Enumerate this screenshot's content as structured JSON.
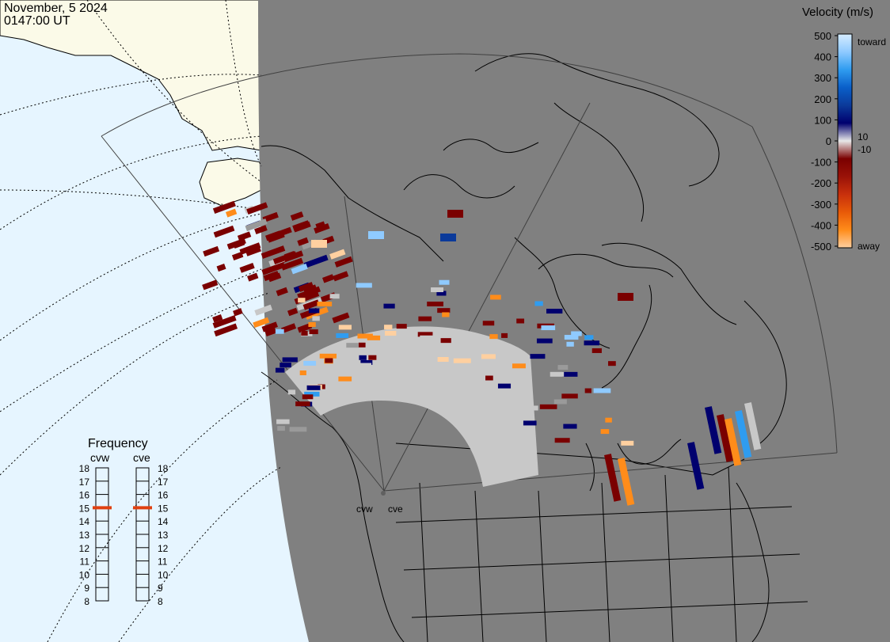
{
  "header": {
    "date": "November, 5 2024",
    "time": "0147:00 UT"
  },
  "legend": {
    "title": "Velocity (m/s)",
    "ticks": [
      "500",
      "400",
      "300",
      "200",
      "100",
      "0",
      "-100",
      "-200",
      "-300",
      "-400",
      "-500"
    ],
    "inner_pos": "10",
    "inner_neg": "-10",
    "toward": "toward",
    "away": "away",
    "gradient": [
      "#d6ecff",
      "#8fcaff",
      "#2f9cf0",
      "#0a5fc9",
      "#0b3a9a",
      "#00006e",
      "#e8e8e8",
      "#7a0000",
      "#9a1208",
      "#c8300c",
      "#e85a08",
      "#ff8c1a",
      "#ffd0a0"
    ]
  },
  "radar_labels": {
    "west": "cvw",
    "east": "cve"
  },
  "frequency": {
    "title": "Frequency",
    "left_label": "cvw",
    "right_label": "cve",
    "scale": [
      "18",
      "17",
      "16",
      "15",
      "14",
      "13",
      "12",
      "11",
      "10",
      "9",
      "8"
    ],
    "cvw_value": 15,
    "cve_value": 15,
    "marker_color": "#e04010"
  },
  "colors": {
    "night": "#808080",
    "ocean_day": "#e6f5ff",
    "land_day": "#fbfae8",
    "scatter_gray": "#c8c8c8",
    "border": "#000000"
  }
}
